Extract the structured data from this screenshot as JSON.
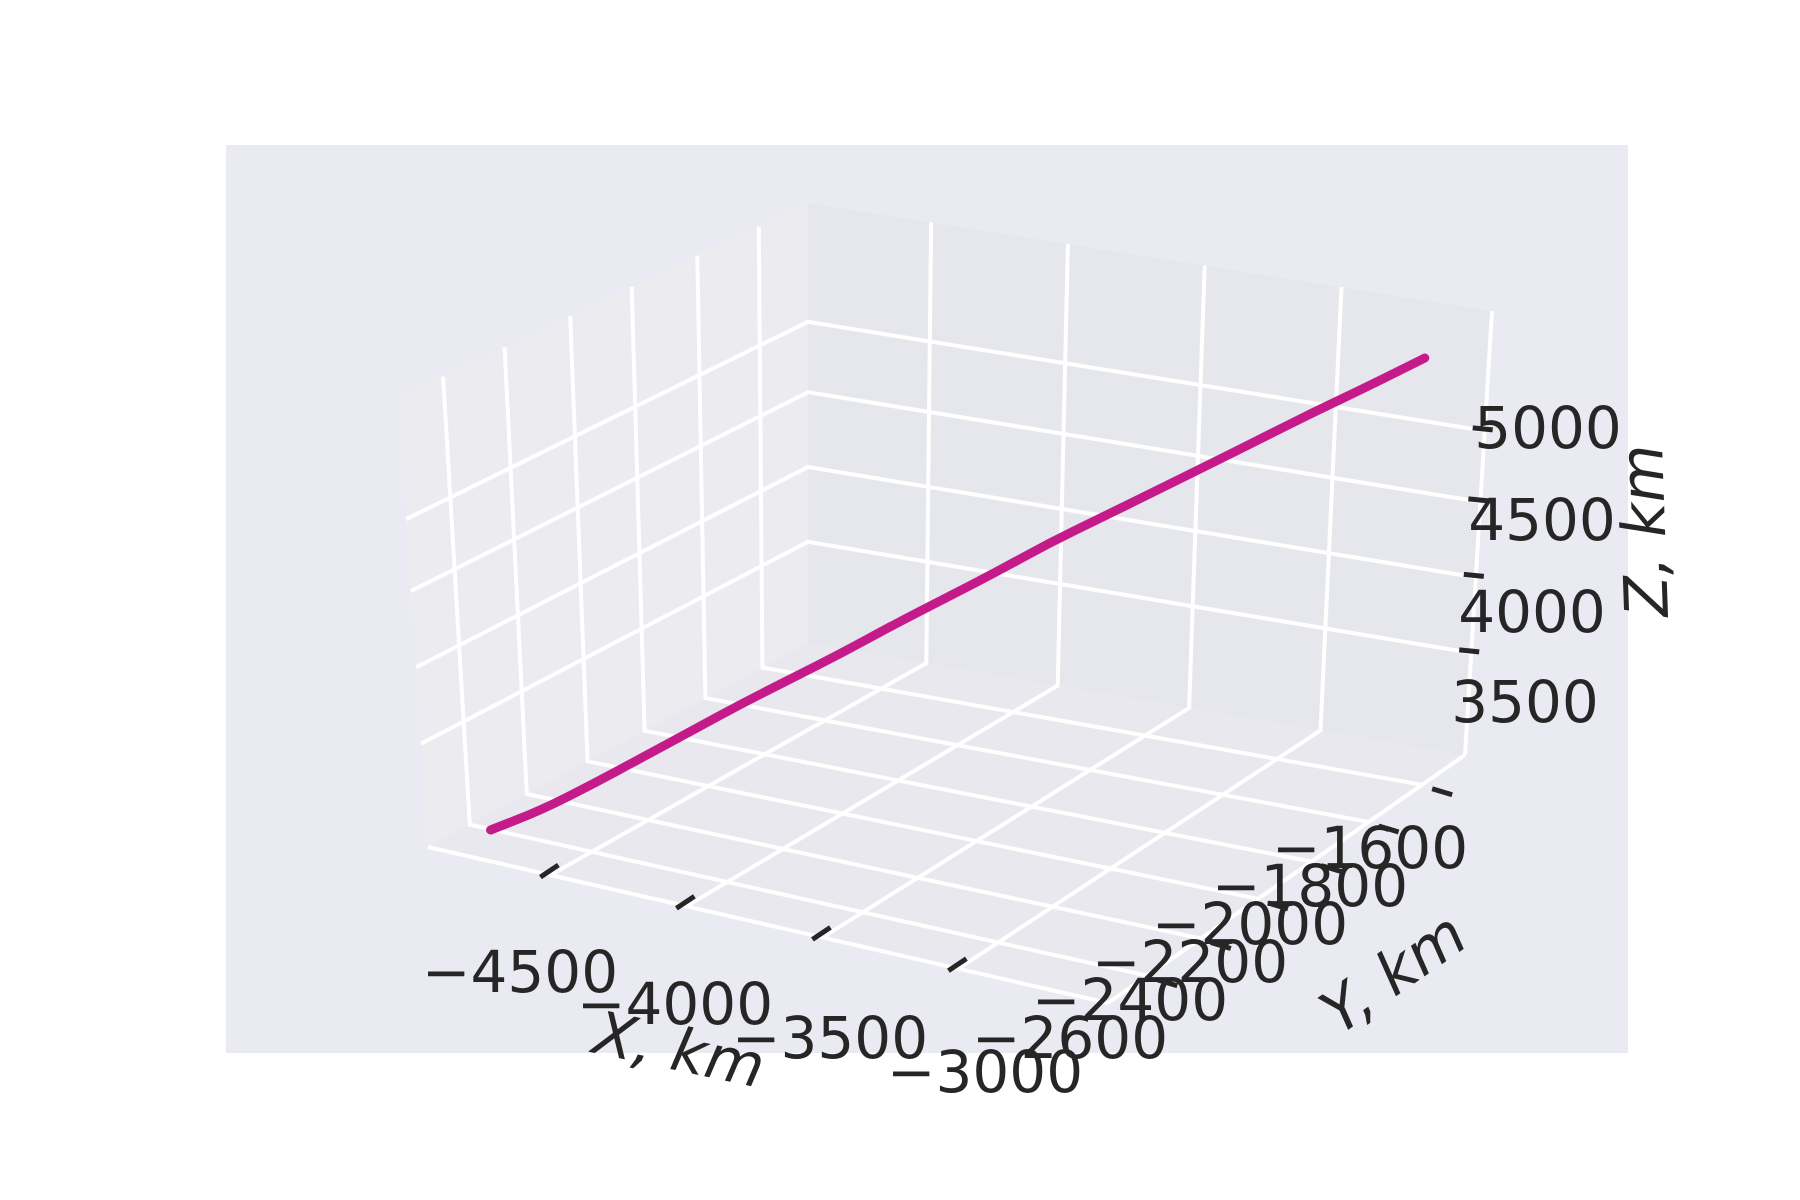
{
  "chart_data": {
    "type": "line3d",
    "title": "",
    "xlabel": "X, km",
    "ylabel": "Y, km",
    "zlabel": "Z, km",
    "x_ticks": [
      "−4500",
      "−4000",
      "−3500",
      "−3000"
    ],
    "y_ticks": [
      "−1600",
      "−1800",
      "−2000",
      "−2200",
      "−2400",
      "−2600"
    ],
    "z_ticks": [
      "5000",
      "4500",
      "4000",
      "3500"
    ],
    "xlim": [
      -4800,
      -2800
    ],
    "ylim": [
      -2700,
      -1400
    ],
    "zlim": [
      3000,
      5500
    ],
    "grid": true,
    "colors": {
      "background": "#eaeaf2",
      "panel_back": "#e6e6ed",
      "panel_side": "#ebebf0",
      "panel_floor": "#e8e8ee",
      "grid": "#ffffff",
      "line": "#c51b8a",
      "text": "#262626"
    },
    "series": [
      {
        "x": [
          -4700,
          -4600,
          -4500,
          -4400,
          -4300,
          -4200,
          -4100,
          -4000,
          -3900,
          -3800,
          -3700,
          -3600,
          -3500,
          -3400,
          -3300,
          -3200,
          -3100,
          -3000,
          -2900
        ],
        "y": [
          -2600,
          -2540,
          -2480,
          -2420,
          -2360,
          -2300,
          -2240,
          -2180,
          -2120,
          -2060,
          -2000,
          -1940,
          -1880,
          -1820,
          -1760,
          -1700,
          -1640,
          -1580,
          -1500
        ],
        "z": [
          3050,
          3150,
          3280,
          3420,
          3560,
          3700,
          3830,
          3960,
          4100,
          4230,
          4360,
          4500,
          4620,
          4740,
          4860,
          4980,
          5100,
          5210,
          5320
        ]
      }
    ]
  }
}
